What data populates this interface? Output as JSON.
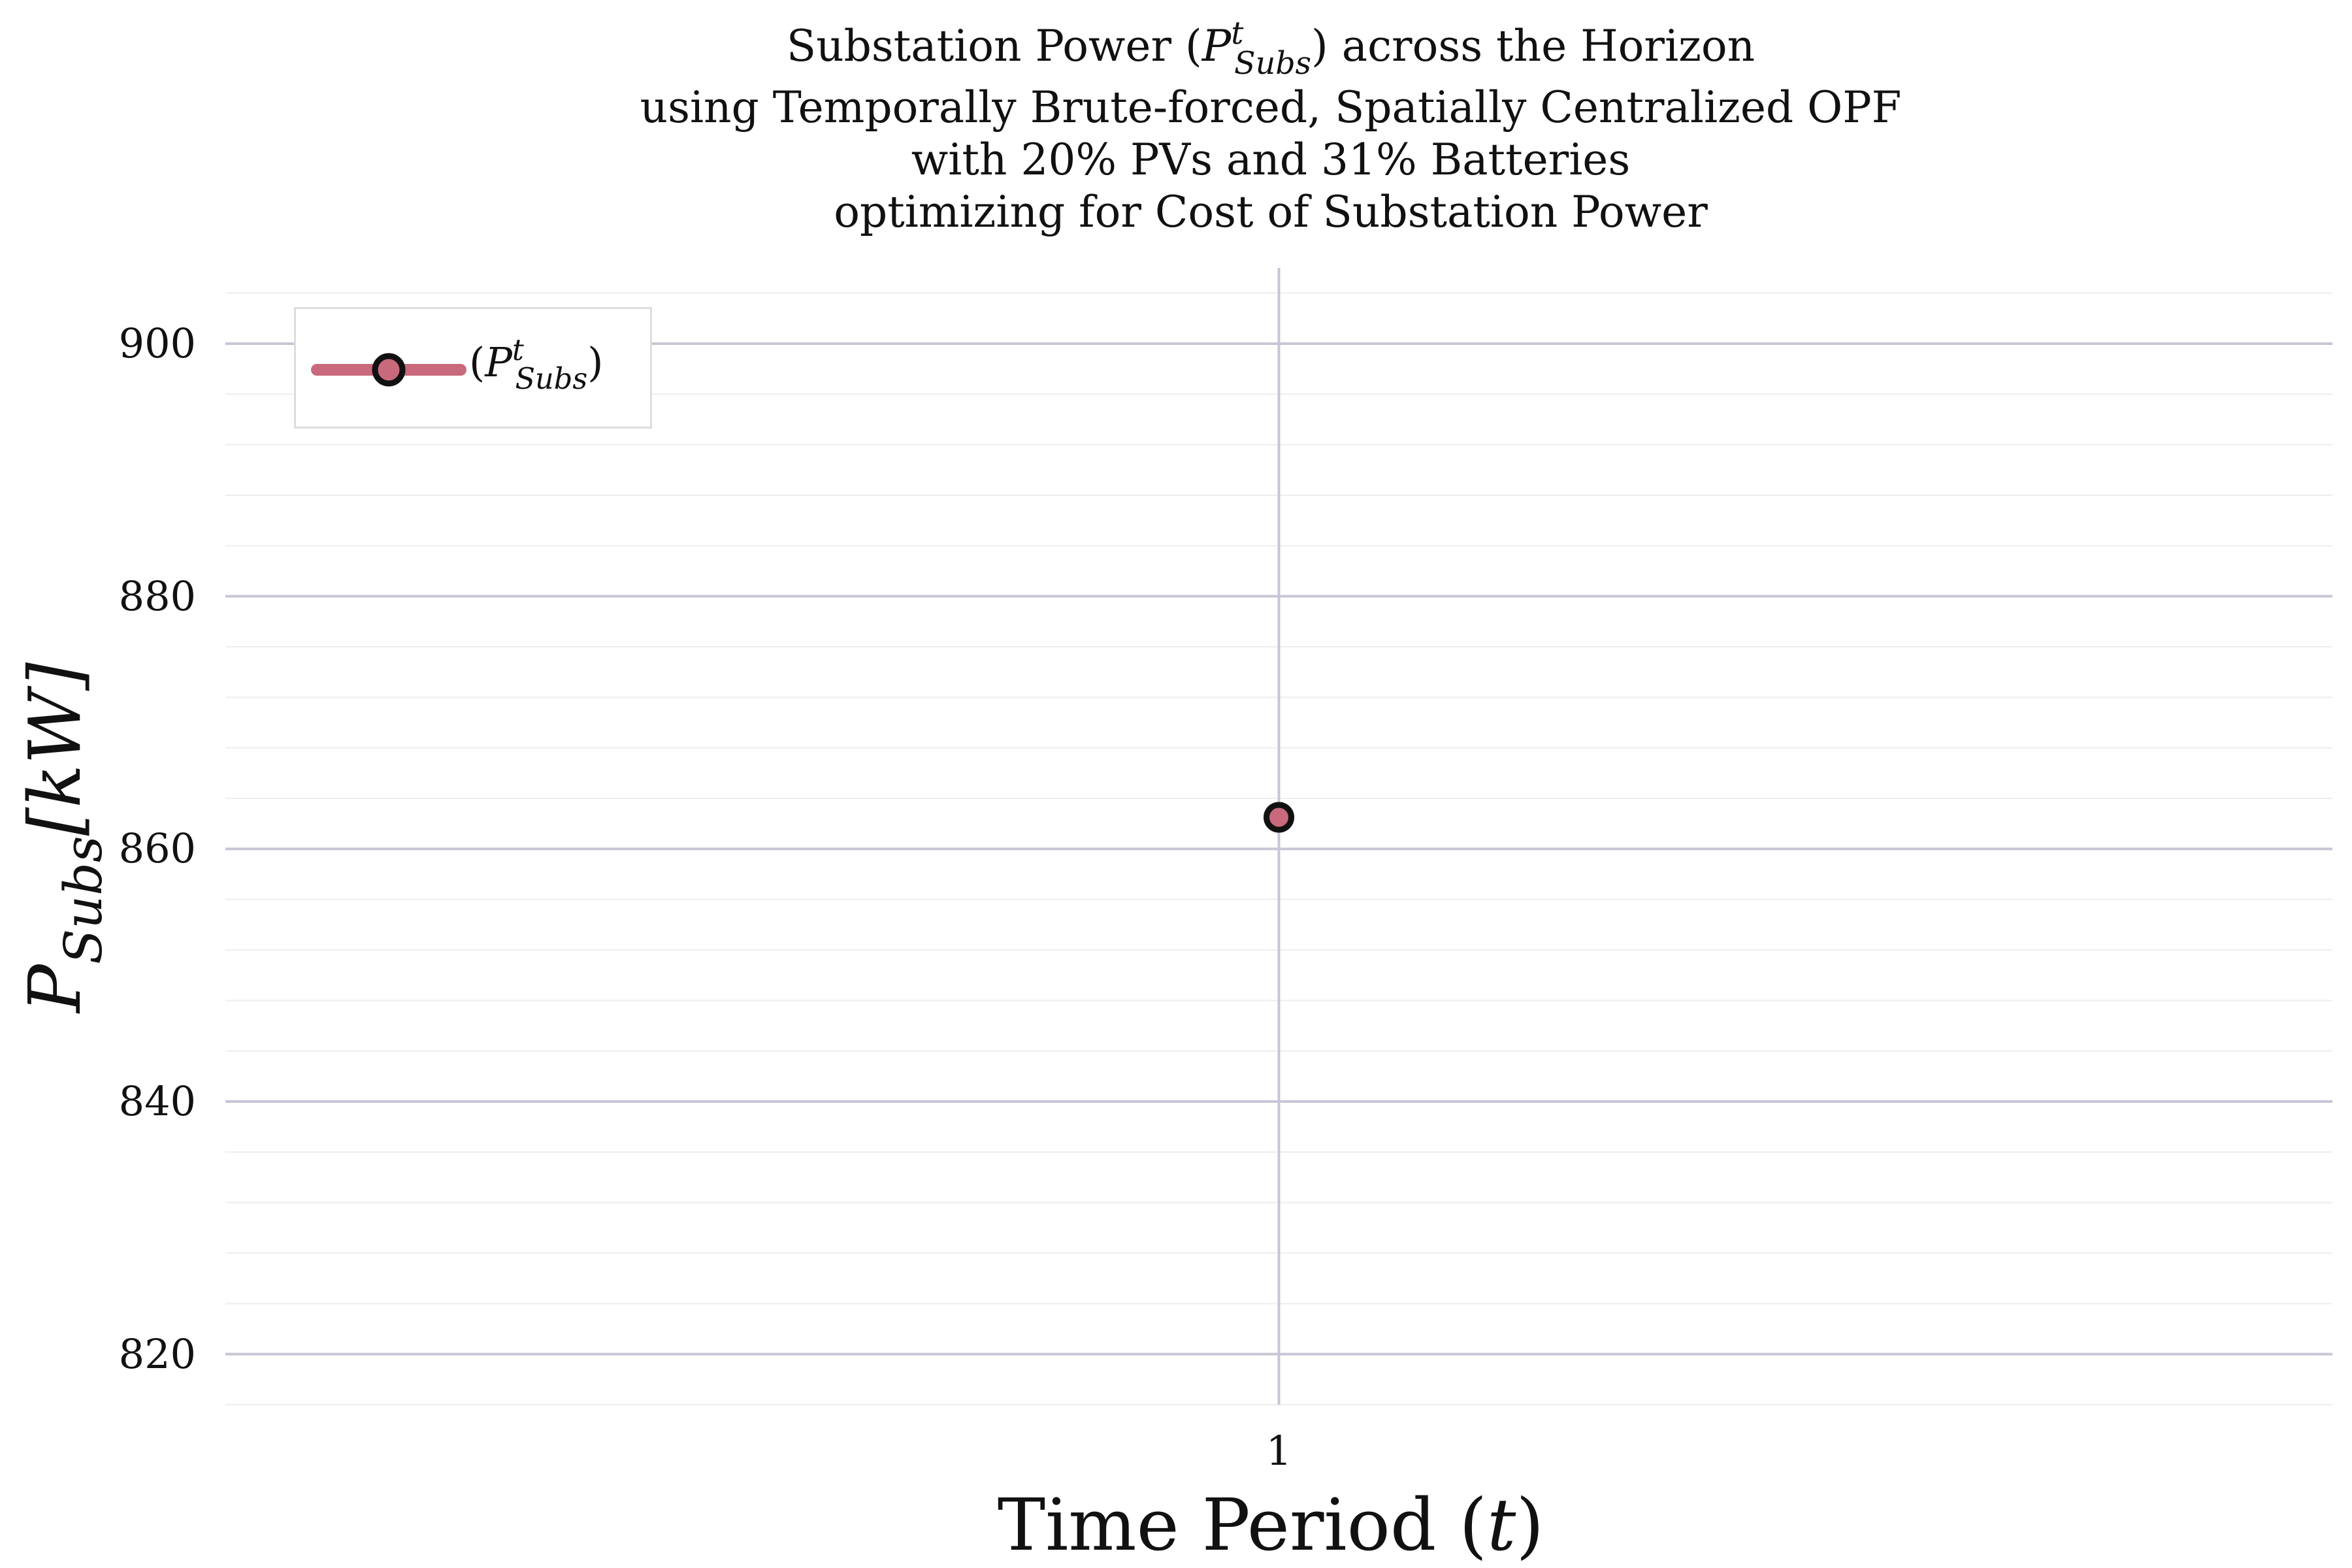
{
  "title_lines": [
    {
      "pre": "Substation Power (",
      "sym": "P",
      "sup": "t",
      "sub": "Subs",
      "post": ") across the Horizon"
    },
    {
      "text": "using Temporally Brute-forced, Spatially Centralized OPF"
    },
    {
      "text": "with 20% PVs and 31% Batteries"
    },
    {
      "text": "optimizing for Cost of Substation Power"
    }
  ],
  "legend": {
    "open": "(",
    "sym": "P",
    "sup": "t",
    "sub": "Subs",
    "close": ")"
  },
  "ylabel": {
    "sym": "P",
    "sub": "Subs",
    "unit": "[kW]"
  },
  "xlabel": {
    "text": "Time Period (",
    "var": "t",
    "close": ")"
  },
  "colors": {
    "series": "#c9697c",
    "marker_edge": "#111111",
    "major_grid": "#c8c6d6",
    "minor_grid": "#eeeeee"
  },
  "chart_data": {
    "type": "line",
    "xlim": [
      0,
      2
    ],
    "ylim": [
      816,
      906
    ],
    "x_ticks": [
      1
    ],
    "y_ticks": [
      820,
      840,
      860,
      880,
      900
    ],
    "y_minor_step": 4,
    "grid": true,
    "legend_position": "top-left",
    "series": [
      {
        "name": "(P^t_Subs)",
        "x": [
          1
        ],
        "y": [
          862.5
        ]
      }
    ]
  }
}
